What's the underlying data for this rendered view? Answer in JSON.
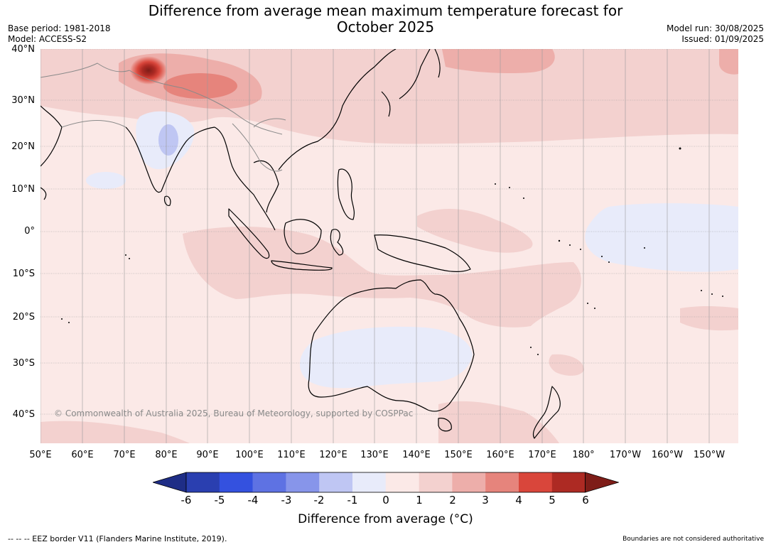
{
  "header": {
    "title_line1": "Difference from average mean maximum temperature forecast for",
    "title_line2": "October 2025",
    "base_period": "Base period: 1981-2018",
    "model": "Model: ACCESS-S2",
    "model_run": "Model run: 30/08/2025",
    "issued": "Issued: 01/09/2025"
  },
  "map": {
    "lat_labels": [
      "40°N",
      "30°N",
      "20°N",
      "10°N",
      "0°",
      "10°S",
      "20°S",
      "30°S",
      "40°S"
    ],
    "lon_labels": [
      "50°E",
      "60°E",
      "70°E",
      "80°E",
      "90°E",
      "100°E",
      "110°E",
      "120°E",
      "130°E",
      "140°E",
      "150°E",
      "160°E",
      "170°E",
      "180°",
      "170°W",
      "160°W",
      "150°W"
    ],
    "copyright": "© Commonwealth of Australia 2025, Bureau of Meteorology, supported by COSPPac"
  },
  "colorbar": {
    "labels": [
      "-6",
      "-5",
      "-4",
      "-3",
      "-2",
      "-1",
      "0",
      "1",
      "2",
      "3",
      "4",
      "5",
      "6"
    ],
    "colors": [
      "#1e2d86",
      "#2a3fb0",
      "#3451df",
      "#5e72e3",
      "#8795ea",
      "#bfc6f3",
      "#e8ebfa",
      "#fbe9e7",
      "#f3d1cf",
      "#edaeaa",
      "#e6847c",
      "#d9463b",
      "#ad2a23",
      "#7e1d18"
    ],
    "title": "Difference from average (°C)"
  },
  "footer": {
    "eez_note": "--  --  -- EEZ border V11 (Flanders Marine Institute, 2019).",
    "disclaimer": "Boundaries are not considered authoritative"
  }
}
